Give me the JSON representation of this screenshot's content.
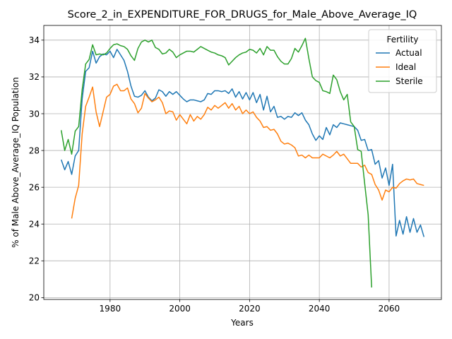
{
  "chart_data": {
    "type": "line",
    "title": "Score_2_in_EXPENDITURE_FOR_DRUGS_for_Male_Above_Average_IQ",
    "xlabel": "Years",
    "ylabel": "% of Male Above_Average_IQ Population",
    "xlim": [
      1961,
      2075
    ],
    "ylim": [
      19.9,
      34.8
    ],
    "xticks": [
      1980,
      2000,
      2020,
      2040,
      2060
    ],
    "yticks": [
      20,
      22,
      24,
      26,
      28,
      30,
      32,
      34
    ],
    "grid": true,
    "legend": {
      "title": "Fertility",
      "placement": "top-right"
    },
    "series": [
      {
        "name": "Actual",
        "color": "#1f77b4",
        "x": [
          1966,
          1967,
          1968,
          1969,
          1970,
          1971,
          1972,
          1973,
          1974,
          1975,
          1976,
          1977,
          1978,
          1979,
          1980,
          1981,
          1982,
          1983,
          1984,
          1985,
          1986,
          1987,
          1988,
          1989,
          1990,
          1991,
          1992,
          1993,
          1994,
          1995,
          1996,
          1997,
          1998,
          1999,
          2000,
          2001,
          2002,
          2003,
          2004,
          2005,
          2006,
          2007,
          2008,
          2009,
          2010,
          2011,
          2012,
          2013,
          2014,
          2015,
          2016,
          2017,
          2018,
          2019,
          2020,
          2021,
          2022,
          2023,
          2024,
          2025,
          2026,
          2027,
          2028,
          2029,
          2030,
          2031,
          2032,
          2033,
          2034,
          2035,
          2036,
          2037,
          2038,
          2039,
          2040,
          2041,
          2042,
          2043,
          2044,
          2045,
          2046,
          2047,
          2048,
          2049,
          2050,
          2051,
          2052,
          2053,
          2054,
          2055,
          2056,
          2057,
          2058,
          2059,
          2060,
          2061,
          2062,
          2063,
          2064,
          2065,
          2066,
          2067,
          2068,
          2069,
          2070
        ],
        "values": [
          27.5,
          26.95,
          27.4,
          26.7,
          27.7,
          28.0,
          30.8,
          32.3,
          32.5,
          33.4,
          32.75,
          33.1,
          33.25,
          33.2,
          33.4,
          33.05,
          33.5,
          33.2,
          32.9,
          32.3,
          31.5,
          30.95,
          30.9,
          31.0,
          31.25,
          30.9,
          30.7,
          30.85,
          31.3,
          31.2,
          30.95,
          31.2,
          31.05,
          31.2,
          31.0,
          30.8,
          30.65,
          30.75,
          30.75,
          30.7,
          30.65,
          30.75,
          31.1,
          31.05,
          31.25,
          31.25,
          31.2,
          31.25,
          31.1,
          31.35,
          30.9,
          31.2,
          30.8,
          31.15,
          30.75,
          31.15,
          30.6,
          31.05,
          30.2,
          30.95,
          30.1,
          30.4,
          29.8,
          29.85,
          29.7,
          29.85,
          29.8,
          30.05,
          29.9,
          30.05,
          29.65,
          29.4,
          28.9,
          28.55,
          28.8,
          28.6,
          29.25,
          28.85,
          29.4,
          29.25,
          29.5,
          29.45,
          29.4,
          29.35,
          29.3,
          29.1,
          28.55,
          28.6,
          28.0,
          28.05,
          27.25,
          27.45,
          26.5,
          27.05,
          26.1,
          27.25,
          23.35,
          24.2,
          23.45,
          24.4,
          23.55,
          24.3,
          23.55,
          23.95,
          23.3
        ]
      },
      {
        "name": "Ideal",
        "color": "#ff7f0e",
        "x": [
          1969,
          1970,
          1971,
          1972,
          1973,
          1974,
          1975,
          1976,
          1977,
          1978,
          1979,
          1980,
          1981,
          1982,
          1983,
          1984,
          1985,
          1986,
          1987,
          1988,
          1989,
          1990,
          1991,
          1992,
          1993,
          1994,
          1995,
          1996,
          1997,
          1998,
          1999,
          2000,
          2001,
          2002,
          2003,
          2004,
          2005,
          2006,
          2007,
          2008,
          2009,
          2010,
          2011,
          2012,
          2013,
          2014,
          2015,
          2016,
          2017,
          2018,
          2019,
          2020,
          2021,
          2022,
          2023,
          2024,
          2025,
          2026,
          2027,
          2028,
          2029,
          2030,
          2031,
          2032,
          2033,
          2034,
          2035,
          2036,
          2037,
          2038,
          2039,
          2040,
          2041,
          2042,
          2043,
          2044,
          2045,
          2046,
          2047,
          2048,
          2049,
          2050,
          2051,
          2052,
          2053,
          2054,
          2055,
          2056,
          2057,
          2058,
          2059,
          2060,
          2061,
          2062,
          2063,
          2064,
          2065,
          2066,
          2067,
          2068,
          2069,
          2070
        ],
        "values": [
          24.3,
          25.4,
          26.1,
          28.9,
          30.4,
          30.9,
          31.45,
          30.1,
          29.3,
          30.1,
          30.9,
          31.05,
          31.5,
          31.6,
          31.25,
          31.25,
          31.4,
          30.8,
          30.55,
          30.05,
          30.3,
          31.1,
          30.85,
          30.65,
          30.75,
          30.9,
          30.6,
          30.0,
          30.15,
          30.1,
          29.65,
          29.95,
          29.7,
          29.45,
          29.95,
          29.6,
          29.85,
          29.7,
          29.95,
          30.35,
          30.2,
          30.45,
          30.3,
          30.45,
          30.6,
          30.3,
          30.55,
          30.2,
          30.4,
          30.0,
          30.2,
          30.0,
          30.1,
          29.8,
          29.6,
          29.25,
          29.3,
          29.1,
          29.15,
          28.9,
          28.5,
          28.35,
          28.4,
          28.3,
          28.15,
          27.7,
          27.75,
          27.6,
          27.75,
          27.6,
          27.6,
          27.6,
          27.8,
          27.7,
          27.6,
          27.75,
          27.95,
          27.7,
          27.8,
          27.55,
          27.3,
          27.3,
          27.3,
          27.1,
          27.2,
          26.8,
          26.7,
          26.15,
          25.85,
          25.3,
          25.85,
          25.75,
          26.0,
          25.95,
          26.2,
          26.35,
          26.45,
          26.4,
          26.45,
          26.2,
          26.15,
          26.1
        ]
      },
      {
        "name": "Sterile",
        "color": "#2ca02c",
        "x": [
          1966,
          1967,
          1968,
          1969,
          1970,
          1971,
          1972,
          1973,
          1974,
          1975,
          1976,
          1977,
          1978,
          1979,
          1980,
          1981,
          1982,
          1983,
          1984,
          1985,
          1986,
          1987,
          1988,
          1989,
          1990,
          1991,
          1992,
          1993,
          1994,
          1995,
          1996,
          1997,
          1998,
          1999,
          2000,
          2001,
          2002,
          2003,
          2004,
          2005,
          2006,
          2007,
          2008,
          2009,
          2010,
          2011,
          2012,
          2013,
          2014,
          2015,
          2016,
          2017,
          2018,
          2019,
          2020,
          2021,
          2022,
          2023,
          2024,
          2025,
          2026,
          2027,
          2028,
          2029,
          2030,
          2031,
          2032,
          2033,
          2034,
          2035,
          2036,
          2037,
          2038,
          2039,
          2040,
          2041,
          2042,
          2043,
          2044,
          2045,
          2046,
          2047,
          2048,
          2049,
          2050,
          2051,
          2052,
          2053,
          2054,
          2055
        ],
        "values": [
          29.1,
          28.0,
          28.6,
          27.8,
          29.05,
          29.3,
          31.3,
          32.7,
          32.95,
          33.75,
          33.2,
          33.25,
          33.2,
          33.3,
          33.55,
          33.75,
          33.8,
          33.7,
          33.65,
          33.5,
          33.15,
          32.9,
          33.55,
          33.9,
          34.0,
          33.9,
          34.0,
          33.6,
          33.5,
          33.25,
          33.3,
          33.5,
          33.35,
          33.05,
          33.2,
          33.3,
          33.4,
          33.4,
          33.35,
          33.5,
          33.65,
          33.55,
          33.45,
          33.35,
          33.3,
          33.2,
          33.15,
          33.05,
          32.65,
          32.85,
          33.05,
          33.2,
          33.3,
          33.35,
          33.5,
          33.45,
          33.3,
          33.55,
          33.2,
          33.65,
          33.45,
          33.45,
          33.1,
          32.85,
          32.7,
          32.7,
          33.0,
          33.55,
          33.35,
          33.7,
          34.1,
          33.0,
          32.0,
          31.8,
          31.7,
          31.25,
          31.2,
          31.1,
          32.1,
          31.85,
          31.2,
          30.75,
          31.05,
          29.55,
          29.3,
          28.05,
          27.95,
          26.2,
          24.5,
          20.55
        ]
      }
    ]
  }
}
